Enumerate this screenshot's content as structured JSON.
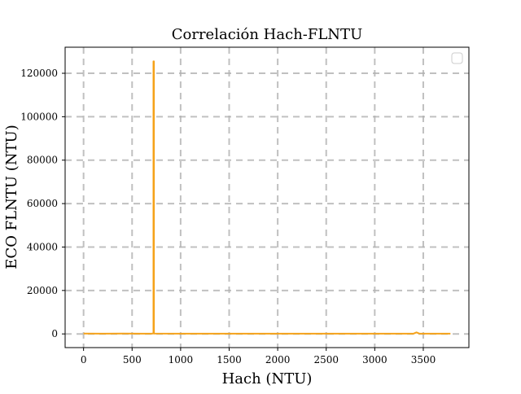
{
  "chart_data": {
    "type": "line",
    "title": "Correlación Hach-FLNTU",
    "xlabel": "Hach (NTU)",
    "ylabel": "ECO FLNTU (NTU)",
    "xlim": [
      -190,
      3970
    ],
    "ylim": [
      -6300,
      132000
    ],
    "x_ticks": [
      0,
      500,
      1000,
      1500,
      2000,
      2500,
      3000,
      3500
    ],
    "y_ticks": [
      0,
      20000,
      40000,
      60000,
      80000,
      100000,
      120000
    ],
    "grid": true,
    "legend": "top-right, empty",
    "series": [
      {
        "color": "#f5a21a",
        "x": [
          0,
          200,
          400,
          600,
          700,
          720,
          720,
          725,
          725,
          1000,
          1500,
          2000,
          2500,
          3000,
          3400,
          3430,
          3460,
          3500,
          3780
        ],
        "y": [
          180,
          120,
          150,
          130,
          110,
          200,
          125500,
          125500,
          150,
          120,
          110,
          130,
          120,
          110,
          140,
          700,
          150,
          120,
          130
        ]
      }
    ]
  },
  "colors": {
    "line": "#f5a21a",
    "grid": "#b0b0b0",
    "axes": "#000000",
    "legend_border": "#cccccc"
  }
}
